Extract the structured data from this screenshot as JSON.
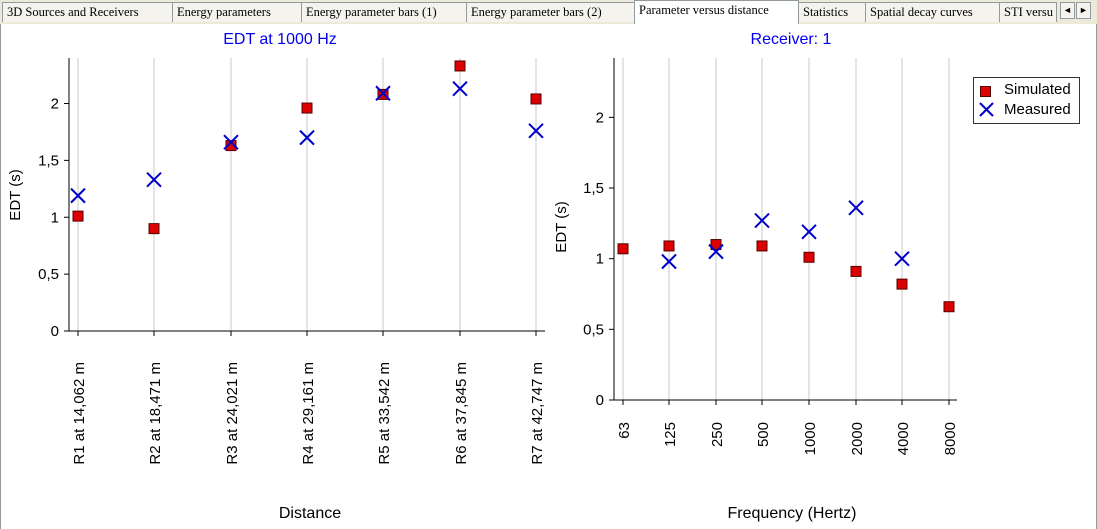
{
  "tabs": [
    {
      "label": "3D Sources and Receivers"
    },
    {
      "label": "Energy parameters"
    },
    {
      "label": "Energy parameter bars (1)"
    },
    {
      "label": "Energy parameter bars (2)"
    },
    {
      "label": "Parameter versus distance"
    },
    {
      "label": "Statistics"
    },
    {
      "label": "Spatial decay curves"
    },
    {
      "label": "STI versu"
    }
  ],
  "scroll": {
    "left_icon": "arrow-left-icon",
    "right_icon": "arrow-right-icon",
    "left": "◄",
    "right": "►"
  },
  "colors": {
    "simulated": "#dd0000",
    "measured": "#0000cc",
    "title": "#0000ee"
  },
  "legend": {
    "simulated": "Simulated",
    "measured": "Measured"
  },
  "chart_data": [
    {
      "type": "scatter",
      "title": "EDT at 1000 Hz",
      "xlabel": "Distance",
      "ylabel": "EDT (s)",
      "ylim": [
        0,
        2.4
      ],
      "yticks": [
        "0",
        "0,5",
        "1",
        "1,5",
        "2"
      ],
      "grid": "vertical",
      "categories": [
        "R1 at 14,062 m",
        "R2 at 18,471 m",
        "R3 at 24,021 m",
        "R4 at 29,161 m",
        "R5 at 33,542 m",
        "R6 at 37,845 m",
        "R7 at 42,747 m"
      ],
      "series": [
        {
          "name": "Simulated",
          "marker": "square",
          "values": [
            1.01,
            0.9,
            1.63,
            1.96,
            2.08,
            2.33,
            2.04
          ]
        },
        {
          "name": "Measured",
          "marker": "x",
          "values": [
            1.19,
            1.33,
            1.66,
            1.7,
            2.09,
            2.13,
            1.76
          ]
        }
      ]
    },
    {
      "type": "scatter",
      "title": "Receiver: 1",
      "xlabel": "Frequency (Hertz)",
      "ylabel": "EDT (s)",
      "ylim": [
        0,
        2.42
      ],
      "yticks": [
        "0",
        "0,5",
        "1",
        "1,5",
        "2"
      ],
      "grid": "vertical",
      "legend": "top-right",
      "categories": [
        "63",
        "125",
        "250",
        "500",
        "1000",
        "2000",
        "4000",
        "8000"
      ],
      "series": [
        {
          "name": "Simulated",
          "marker": "square",
          "values": [
            1.07,
            1.09,
            1.1,
            1.09,
            1.01,
            0.91,
            0.82,
            0.66
          ]
        },
        {
          "name": "Measured",
          "marker": "x",
          "values": [
            null,
            0.98,
            1.05,
            1.27,
            1.19,
            1.36,
            1.0,
            null
          ]
        }
      ]
    }
  ]
}
